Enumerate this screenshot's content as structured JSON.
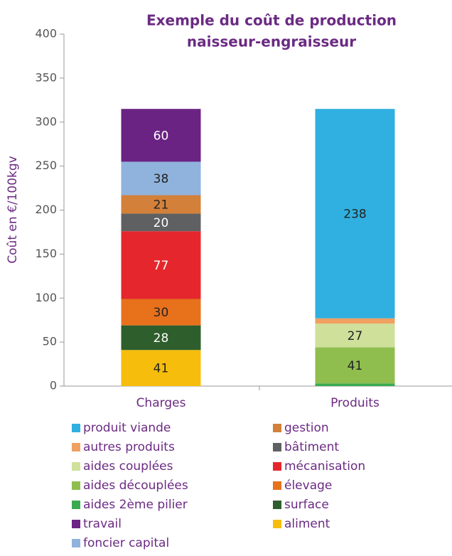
{
  "chart_data": {
    "type": "stacked_bar",
    "title": [
      "Exemple du coût de production",
      "naisseur-engraisseur"
    ],
    "y_label": "Coût en €/100kgv",
    "categories": [
      "Charges",
      "Produits"
    ],
    "ylim": [
      0,
      400
    ],
    "yticks": [
      0,
      50,
      100,
      150,
      200,
      250,
      300,
      350,
      400
    ],
    "series": [
      {
        "name": "aliment",
        "color": "#f7bd0c",
        "label_color": "#222",
        "values": [
          41,
          null
        ]
      },
      {
        "name": "surface",
        "color": "#2e5e2c",
        "label_color": "#fff",
        "values": [
          28,
          null
        ]
      },
      {
        "name": "élevage",
        "color": "#e8711c",
        "label_color": "#222",
        "values": [
          30,
          null
        ]
      },
      {
        "name": "mécanisation",
        "color": "#e5272d",
        "label_color": "#fff",
        "values": [
          77,
          null
        ]
      },
      {
        "name": "bâtiment",
        "color": "#5f6062",
        "label_color": "#fff",
        "values": [
          20,
          null
        ]
      },
      {
        "name": "gestion",
        "color": "#d2803a",
        "label_color": "#222",
        "values": [
          21,
          null
        ]
      },
      {
        "name": "foncier capital",
        "color": "#8fb3dc",
        "label_color": "#222",
        "values": [
          38,
          null
        ]
      },
      {
        "name": "travail",
        "color": "#6a2383",
        "label_color": "#fff",
        "values": [
          60,
          null
        ]
      },
      {
        "name": "aides 2ème pilier",
        "color": "#3aaa50",
        "label_color": "#222",
        "values": [
          null,
          3
        ]
      },
      {
        "name": "aides découplées",
        "color": "#8fbe4f",
        "label_color": "#222",
        "values": [
          null,
          41
        ]
      },
      {
        "name": "aides couplées",
        "color": "#cfe09a",
        "label_color": "#222",
        "values": [
          null,
          27
        ]
      },
      {
        "name": "autres produits",
        "color": "#f0a060",
        "label_color": "#222",
        "values": [
          null,
          6
        ]
      },
      {
        "name": "produit viande",
        "color": "#30b0e0",
        "label_color": "#222",
        "values": [
          null,
          238
        ]
      }
    ]
  }
}
